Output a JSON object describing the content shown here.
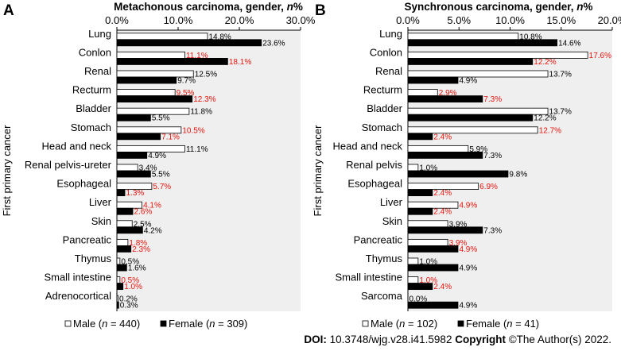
{
  "chart_data": [
    {
      "panel_letter": "A",
      "type": "bar",
      "orientation": "horizontal",
      "title_prefix": "Metachonous carcinoma, gender, ",
      "title_italic": "n",
      "title_suffix": "%",
      "ylabel": "First primary cancer",
      "xlim": [
        0,
        30
      ],
      "xticks": [
        "0.0%",
        "10.0%",
        "20.0%",
        "30.0%"
      ],
      "categories": [
        "Lung",
        "Conlon",
        "Renal",
        "Recturm",
        "Bladder",
        "Stomach",
        "Head and neck",
        "Renal pelvis-ureter",
        "Esophageal",
        "Liver",
        "Skin",
        "Pancreatic",
        "Thymus",
        "Small intestine",
        "Adrenocortical"
      ],
      "series": [
        {
          "name": "Male",
          "values": [
            14.8,
            11.1,
            12.5,
            9.5,
            11.8,
            10.5,
            11.1,
            3.4,
            5.7,
            4.1,
            2.5,
            1.8,
            0.5,
            0.5,
            0.2
          ],
          "labels": [
            "14.8%",
            "11.1%",
            "12.5%",
            "9.5%",
            "11.8%",
            "10.5%",
            "11.1%",
            "3.4%",
            "5.7%",
            "4.1%",
            "2.5%",
            "1.8%",
            "0.5%",
            "0.5%",
            "0.2%"
          ]
        },
        {
          "name": "Female",
          "values": [
            23.6,
            18.1,
            9.7,
            12.3,
            5.5,
            7.1,
            4.9,
            5.5,
            1.3,
            2.6,
            4.2,
            2.3,
            1.6,
            1.0,
            0.3
          ],
          "labels": [
            "23.6%",
            "18.1%",
            "9.7%",
            "12.3%",
            "5.5%",
            "7.1%",
            "4.9%",
            "5.5%",
            "1.3%",
            "2.6%",
            "4.2%",
            "2.3%",
            "1.6%",
            "1.0%",
            "0.3%"
          ]
        }
      ],
      "red_label_categories": [
        "Conlon",
        "Recturm",
        "Stomach",
        "Esophageal",
        "Liver",
        "Pancreatic",
        "Small intestine"
      ],
      "legend": {
        "male_prefix": "Male (",
        "n": "n",
        "male_suffix": " = 440)",
        "female_prefix": "Female (",
        "female_suffix": " = 309)"
      }
    },
    {
      "panel_letter": "B",
      "type": "bar",
      "orientation": "horizontal",
      "title_prefix": "Synchronous carcinoma, gender, ",
      "title_italic": "n",
      "title_suffix": "%",
      "ylabel": "First primary cancer",
      "xlim": [
        0,
        20
      ],
      "xticks": [
        "0.0%",
        "5.0%",
        "10.0%",
        "15.0%",
        "20.0%"
      ],
      "categories": [
        "Lung",
        "Conlon",
        "Renal",
        "Recturm",
        "Bladder",
        "Stomach",
        "Head and neck",
        "Renal pelvis",
        "Esophageal",
        "Liver",
        "Skin",
        "Pancreatic",
        "Thymus",
        "Small intestine",
        "Sarcoma"
      ],
      "series": [
        {
          "name": "Male",
          "values": [
            10.8,
            17.6,
            13.7,
            2.9,
            13.7,
            12.7,
            5.9,
            1.0,
            6.9,
            4.9,
            3.9,
            3.9,
            1.0,
            1.0,
            0.0
          ],
          "labels": [
            "10.8%",
            "17.6%",
            "13.7%",
            "2.9%",
            "13.7%",
            "12.7%",
            "5.9%",
            "1.0%",
            "6.9%",
            "4.9%",
            "3.9%",
            "3.9%",
            "1.0%",
            "1.0%",
            "0.0%"
          ]
        },
        {
          "name": "Female",
          "values": [
            14.6,
            12.2,
            4.9,
            7.3,
            12.2,
            2.4,
            7.3,
            9.8,
            2.4,
            2.4,
            7.3,
            4.9,
            4.9,
            2.4,
            4.9
          ],
          "labels": [
            "14.6%",
            "12.2%",
            "4.9%",
            "7.3%",
            "12.2%",
            "2.4%",
            "7.3%",
            "9.8%",
            "2.4%",
            "2.4%",
            "7.3%",
            "4.9%",
            "4.9%",
            "2.4%",
            "4.9%"
          ]
        }
      ],
      "red_label_categories": [
        "Conlon",
        "Recturm",
        "Stomach",
        "Esophageal",
        "Liver",
        "Pancreatic",
        "Small intestine"
      ],
      "legend": {
        "male_prefix": "Male (",
        "n": "n",
        "male_suffix": " = 102)",
        "female_prefix": "Female (",
        "female_suffix": " = 41)"
      }
    }
  ],
  "colors": {
    "male_fill": "#ffffff",
    "female_fill": "#000000",
    "plot_bg": "#efefef",
    "highlight": "#e8140c",
    "text": "#000000"
  },
  "footer": {
    "doi_label": "DOI:",
    "doi_value": " 10.3748/wjg.v28.i41.5982",
    "copyright_label": "Copyright",
    "copyright_value": " ©The Author(s) 2022."
  }
}
